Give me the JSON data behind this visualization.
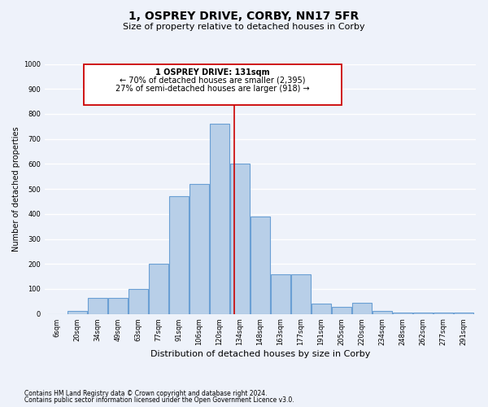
{
  "title": "1, OSPREY DRIVE, CORBY, NN17 5FR",
  "subtitle": "Size of property relative to detached houses in Corby",
  "xlabel": "Distribution of detached houses by size in Corby",
  "ylabel": "Number of detached properties",
  "bin_labels": [
    "6sqm",
    "20sqm",
    "34sqm",
    "49sqm",
    "63sqm",
    "77sqm",
    "91sqm",
    "106sqm",
    "120sqm",
    "134sqm",
    "148sqm",
    "163sqm",
    "177sqm",
    "191sqm",
    "205sqm",
    "220sqm",
    "234sqm",
    "248sqm",
    "262sqm",
    "277sqm",
    "291sqm"
  ],
  "bar_heights": [
    0,
    13,
    65,
    65,
    100,
    200,
    470,
    520,
    760,
    600,
    390,
    160,
    160,
    40,
    28,
    45,
    13,
    5,
    5,
    5,
    5
  ],
  "bar_color": "#b8cfe8",
  "bar_edge_color": "#6a9fd4",
  "red_line_x": 8.73,
  "ylim": [
    0,
    1000
  ],
  "yticks": [
    0,
    100,
    200,
    300,
    400,
    500,
    600,
    700,
    800,
    900,
    1000
  ],
  "annotation_title": "1 OSPREY DRIVE: 131sqm",
  "annotation_line1": "← 70% of detached houses are smaller (2,395)",
  "annotation_line2": "27% of semi-detached houses are larger (918) →",
  "annotation_box_color": "#ffffff",
  "annotation_box_edge": "#cc0000",
  "footer_line1": "Contains HM Land Registry data © Crown copyright and database right 2024.",
  "footer_line2": "Contains public sector information licensed under the Open Government Licence v3.0.",
  "bg_color": "#eef2fa",
  "grid_color": "#ffffff",
  "title_fontsize": 10,
  "subtitle_fontsize": 8,
  "xlabel_fontsize": 8,
  "ylabel_fontsize": 7,
  "tick_fontsize": 6,
  "ann_fontsize": 7,
  "footer_fontsize": 5.5
}
